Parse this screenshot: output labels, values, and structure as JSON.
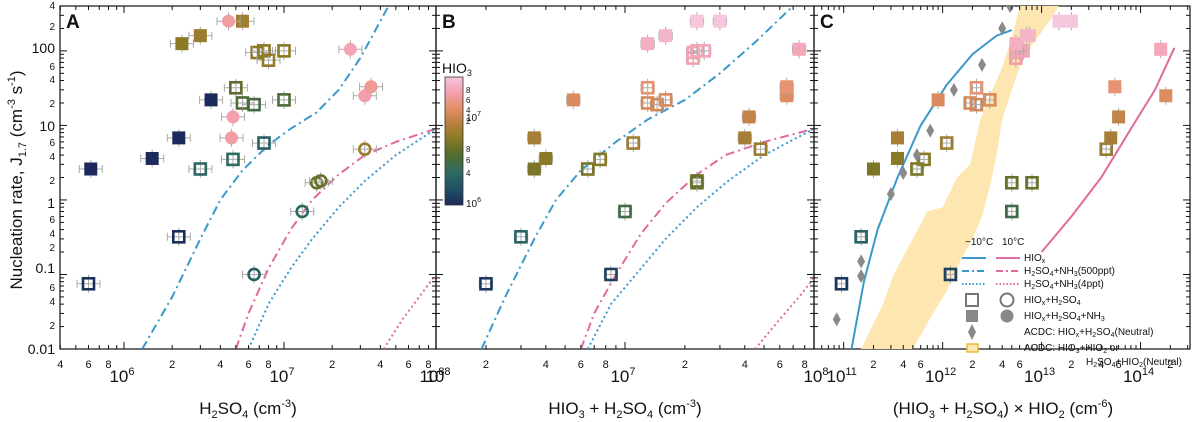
{
  "colors": {
    "blue_curve": "#3a99cc",
    "pink_curve": "#e06aa0",
    "band_fill": "#fde6b0",
    "diamond": "#8a8a8a",
    "errorbar": "#aaaaaa",
    "axis": "#111111"
  },
  "ylabel_main": "Nucleation rate, J",
  "ylabel_sub": "1.7",
  "ylabel_units": " (cm",
  "ylabel_exp1": "-3",
  "ylabel_mid": " s",
  "ylabel_exp2": "-1",
  "ylabel_close": ")",
  "colorbar": {
    "title": "HIO",
    "title_sub": "3",
    "label_top": "10",
    "label_top_exp": "7",
    "label_bottom": "10",
    "label_bottom_exp": "6",
    "minor_labels": [
      "8",
      "6",
      "4",
      "2",
      "8",
      "6",
      "4"
    ],
    "stops": [
      "#1b2a5a",
      "#1f4f63",
      "#2c6a63",
      "#556c2c",
      "#8a7a25",
      "#b88040",
      "#e6906a",
      "#f4a0b0",
      "#f6c6dc"
    ]
  },
  "y_ticks": {
    "major": [
      "100",
      "10",
      "1",
      "0.1",
      "0.01"
    ],
    "minor": [
      "4",
      "2",
      "6",
      "4",
      "2",
      "6",
      "4",
      "2",
      "6",
      "4",
      "2",
      "6",
      "4",
      "2"
    ]
  },
  "legend": {
    "header_cold": "−10°C",
    "header_warm": "10°C",
    "entries": [
      "HIO",
      "H",
      "H",
      "HIO",
      "HIO",
      "ACDC: HIO",
      "ACDC: HIO"
    ],
    "hiox": {
      "a": "HIO",
      "b": "x"
    },
    "nh3_500": {
      "a": "H",
      "b": "2",
      "c": "SO",
      "d": "4",
      "e": "+NH",
      "f": "3",
      "g": "(500ppt)"
    },
    "nh3_4": {
      "a": "H",
      "b": "2",
      "c": "SO",
      "d": "4",
      "e": "+NH",
      "f": "3",
      "g": "(4ppt)"
    },
    "hiox_h2so4": {
      "a": "HIO",
      "b": "x",
      "c": "+H",
      "d": "2",
      "e": "SO",
      "f": "4"
    },
    "hiox_h2so4_nh3": {
      "a": "HIO",
      "b": "x",
      "c": "+H",
      "d": "2",
      "e": "SO",
      "f": "4",
      "g": "+NH",
      "h": "3"
    },
    "acdc1": {
      "a": "ACDC: HIO",
      "b": "x",
      "c": "+H",
      "d": "2",
      "e": "SO",
      "f": "4",
      "g": "(Neutral)"
    },
    "acdc2": {
      "a": "ACDC: HIO",
      "b": "3",
      "c": "+HIO",
      "d": "2",
      "e": " or"
    },
    "acdc3": {
      "a": "H",
      "b": "2",
      "c": "SO",
      "d": "4",
      "e": "+HIO",
      "f": "2",
      "g": "(Neutral)"
    }
  },
  "panels": [
    {
      "letter": "A",
      "xlabel": {
        "a": "H",
        "b": "2",
        "c": "SO",
        "d": "4",
        "e": " (cm",
        "f": "-3",
        "g": ")"
      },
      "xmin_exp": 5.6,
      "xmax_exp": 7.95,
      "major_ticks": [
        {
          "exp": 6,
          "base": "10",
          "pow": "6"
        },
        {
          "exp": 7,
          "base": "10",
          "pow": "7"
        }
      ],
      "minor_labels": [
        {
          "v": 400000.0,
          "t": "4"
        },
        {
          "v": 600000.0,
          "t": "6"
        },
        {
          "v": 800000.0,
          "t": "8"
        },
        {
          "v": 2000000.0,
          "t": "2"
        },
        {
          "v": 4000000.0,
          "t": "4"
        },
        {
          "v": 6000000.0,
          "t": "6"
        },
        {
          "v": 8000000.0,
          "t": "8"
        },
        {
          "v": 20000000.0,
          "t": "2"
        },
        {
          "v": 40000000.0,
          "t": "4"
        },
        {
          "v": 60000000.0,
          "t": "6"
        },
        {
          "v": 80000000.0,
          "t": "8"
        }
      ]
    },
    {
      "letter": "B",
      "xlabel": {
        "a": "HIO",
        "b": "3",
        "c": " + H",
        "d": "2",
        "e": "SO",
        "f": "4",
        "g": " (cm",
        "h": "-3",
        "i": ")"
      },
      "xmin_exp": 6.05,
      "xmax_exp": 7.95,
      "major_ticks": [
        {
          "exp": 7,
          "base": "10",
          "pow": "7"
        }
      ],
      "minor_labels": [
        {
          "v": 2000000.0,
          "t": "2"
        },
        {
          "v": 4000000.0,
          "t": "4"
        },
        {
          "v": 6000000.0,
          "t": "6"
        },
        {
          "v": 8000000.0,
          "t": "8"
        },
        {
          "v": 20000000.0,
          "t": "2"
        },
        {
          "v": 40000000.0,
          "t": "4"
        },
        {
          "v": 60000000.0,
          "t": "6"
        },
        {
          "v": 80000000.0,
          "t": "8"
        }
      ],
      "edge_label": {
        "base": "10",
        "pow": "8"
      }
    },
    {
      "letter": "C",
      "xlabel": {
        "a": "(HIO",
        "b": "3",
        "c": " + H",
        "d": "2",
        "e": "SO",
        "f": "4",
        "g": ") × HIO",
        "h": "2",
        "i": " (cm",
        "j": "-6",
        "k": ")"
      },
      "xmin_exp": 10.7,
      "xmax_exp": 14.5,
      "major_ticks": [
        {
          "exp": 11,
          "base": "10",
          "pow": "11"
        },
        {
          "exp": 12,
          "base": "10",
          "pow": "12"
        },
        {
          "exp": 13,
          "base": "10",
          "pow": "13"
        },
        {
          "exp": 14,
          "base": "10",
          "pow": "14"
        }
      ],
      "minor_labels": [
        {
          "v": 200000000000.0,
          "t": "2"
        },
        {
          "v": 400000000000.0,
          "t": "4"
        },
        {
          "v": 600000000000.0,
          "t": "6"
        },
        {
          "v": 2000000000000.0,
          "t": "2"
        },
        {
          "v": 4000000000000.0,
          "t": "4"
        },
        {
          "v": 6000000000000.0,
          "t": "6"
        },
        {
          "v": 20000000000000.0,
          "t": "2"
        },
        {
          "v": 40000000000000.0,
          "t": "4"
        },
        {
          "v": 60000000000000.0,
          "t": "6"
        },
        {
          "v": 200000000000000.0,
          "t": "2"
        }
      ]
    }
  ],
  "chart_data": [
    {
      "type": "scatter",
      "panel": "A",
      "title": "A",
      "xlabel": "H2SO4 (cm-3)",
      "ylabel": "Nucleation rate, J1.7 (cm-3 s-1)",
      "xscale": "log",
      "yscale": "log",
      "xlim": [
        398107,
        89125094
      ],
      "ylim": [
        0.01,
        400
      ],
      "series": [
        {
          "name": "HIOx+H2SO4+NH3 (filled square)",
          "points": [
            [
              620000.0,
              2.6,
              1000000.0
            ],
            [
              1500000.0,
              3.6,
              1000000.0
            ],
            [
              2200000.0,
              6.8,
              1000000.0
            ],
            [
              3500000.0,
              22,
              1000000.0
            ],
            [
              2300000.0,
              125,
              10000000.0
            ],
            [
              3000000.0,
              160,
              12000000.0
            ],
            [
              5500000.0,
              250,
              13000000.0
            ]
          ]
        },
        {
          "name": "HIOx+H2SO4 (open square)",
          "points": [
            [
              600000.0,
              0.075,
              1100000.0
            ],
            [
              2200000.0,
              0.32,
              1050000.0
            ],
            [
              3000000.0,
              2.6,
              3000000.0
            ],
            [
              4800000.0,
              3.5,
              3200000.0
            ],
            [
              5000000.0,
              32,
              6000000.0
            ],
            [
              5500000.0,
              20,
              5000000.0
            ],
            [
              6500000.0,
              19,
              4500000.0
            ],
            [
              7500000.0,
              5.8,
              2500000.0
            ],
            [
              10000000.0,
              22,
              5000000.0
            ],
            [
              6800000.0,
              95,
              10000000.0
            ],
            [
              7500000.0,
              100,
              10000000.0
            ],
            [
              8000000.0,
              75,
              11000000.0
            ],
            [
              10000000.0,
              100,
              10000000.0
            ]
          ]
        },
        {
          "name": "HIOx+H2SO4 (open circle)",
          "points": [
            [
              6500000.0,
              0.1,
              2500000.0
            ],
            [
              13000000.0,
              0.7,
              3000000.0
            ],
            [
              16000000.0,
              1.7,
              7000000.0
            ],
            [
              17000000.0,
              1.8,
              7000000.0
            ],
            [
              32000000.0,
              4.8,
              12000000.0
            ]
          ]
        },
        {
          "name": "HIOx+H2SO4+NH3 (filled circle)",
          "points": [
            [
              4700000.0,
              6.8,
              50000000.0
            ],
            [
              4800000.0,
              13,
              55000000.0
            ],
            [
              4500000.0,
              250,
              50000000.0
            ],
            [
              26000000.0,
              105,
              60000000.0
            ],
            [
              32000000.0,
              25,
              55000000.0
            ],
            [
              35000000.0,
              33,
              45000000.0
            ]
          ]
        }
      ],
      "curves": [
        {
          "name": "H2SO4+NH3(500ppt), -10°C",
          "style": "dashdot",
          "color": "blue"
        },
        {
          "name": "H2SO4+NH3(500ppt), 10°C",
          "style": "dashdot",
          "color": "pink"
        },
        {
          "name": "H2SO4+NH3(4ppt), -10°C",
          "style": "dotted",
          "color": "blue"
        },
        {
          "name": "H2SO4+NH3(4ppt), 10°C",
          "style": "dotted",
          "color": "pink"
        }
      ],
      "colorbar": {
        "label": "HIO3",
        "range": [
          1000000.0,
          100000000.0
        ]
      }
    },
    {
      "type": "scatter",
      "panel": "B",
      "title": "B",
      "xlabel": "HIO3 + H2SO4 (cm-3)",
      "ylabel": "Nucleation rate, J1.7 (cm-3 s-1)",
      "xscale": "log",
      "yscale": "log",
      "xlim": [
        1122018,
        89125094
      ],
      "ylim": [
        0.01,
        400
      ],
      "series": [
        {
          "name": "HIOx+H2SO4 (open)",
          "points": [
            [
              2000000.0,
              0.075
            ],
            [
              3000000.0,
              0.32
            ],
            [
              6500000.0,
              2.6
            ],
            [
              7500000.0,
              3.5
            ],
            [
              11000000.0,
              5.8
            ],
            [
              13000000.0,
              20
            ],
            [
              13000000.0,
              32
            ],
            [
              14500000.0,
              19
            ],
            [
              16000000.0,
              22
            ],
            [
              22000000.0,
              80
            ],
            [
              22000000.0,
              95
            ],
            [
              23000000.0,
              100
            ],
            [
              25000000.0,
              100
            ],
            [
              8500000.0,
              0.1
            ],
            [
              10000000.0,
              0.7
            ],
            [
              23000000.0,
              1.7
            ],
            [
              23000000.0,
              1.8
            ],
            [
              48000000.0,
              4.8
            ]
          ]
        },
        {
          "name": "HIOx+H2SO4+NH3 (filled)",
          "points": [
            [
              3500000.0,
              2.6
            ],
            [
              4000000.0,
              3.6
            ],
            [
              3500000.0,
              6.8
            ],
            [
              5500000.0,
              22
            ],
            [
              13000000.0,
              125
            ],
            [
              16000000.0,
              160
            ],
            [
              23000000.0,
              250
            ],
            [
              30000000.0,
              250
            ],
            [
              40000000.0,
              6.8
            ],
            [
              42000000.0,
              13
            ],
            [
              65000000.0,
              25
            ],
            [
              65000000.0,
              33
            ],
            [
              75000000.0,
              105
            ]
          ]
        }
      ]
    },
    {
      "type": "scatter",
      "panel": "C",
      "title": "C",
      "xlabel": "(HIO3 + H2SO4) × HIO2 (cm-6)",
      "ylabel": "Nucleation rate, J1.7 (cm-3 s-1)",
      "xscale": "log",
      "yscale": "log",
      "xlim": [
        50000000000.0,
        320000000000000.0
      ],
      "ylim": [
        0.01,
        400
      ],
      "series": [
        {
          "name": "HIOx+H2SO4 (open)",
          "points": [
            [
              95000000000.0,
              0.075
            ],
            [
              150000000000.0,
              0.32
            ],
            [
              550000000000.0,
              2.6
            ],
            [
              650000000000.0,
              3.5
            ],
            [
              1100000000000.0,
              5.8
            ],
            [
              1900000000000.0,
              20
            ],
            [
              2200000000000.0,
              32
            ],
            [
              2200000000000.0,
              19
            ],
            [
              3000000000000.0,
              22
            ],
            [
              5500000000000.0,
              80
            ],
            [
              5500000000000.0,
              95
            ],
            [
              6000000000000.0,
              100
            ],
            [
              6500000000000.0,
              100
            ],
            [
              1200000000000.0,
              0.1
            ],
            [
              5000000000000.0,
              0.7
            ],
            [
              5000000000000.0,
              1.7
            ],
            [
              8000000000000.0,
              1.7
            ],
            [
              45000000000000.0,
              4.8
            ]
          ]
        },
        {
          "name": "HIOx+H2SO4+NH3 (filled)",
          "points": [
            [
              200000000000.0,
              2.6
            ],
            [
              350000000000.0,
              3.6
            ],
            [
              350000000000.0,
              6.8
            ],
            [
              900000000000.0,
              22
            ],
            [
              5500000000000.0,
              125
            ],
            [
              7000000000000.0,
              160
            ],
            [
              15000000000000.0,
              250
            ],
            [
              20000000000000.0,
              250
            ],
            [
              50000000000000.0,
              6.8
            ],
            [
              60000000000000.0,
              13
            ],
            [
              180000000000000.0,
              25
            ],
            [
              55000000000000.0,
              33
            ],
            [
              160000000000000.0,
              105
            ],
            [
              7500000000000.0,
              160
            ]
          ]
        },
        {
          "name": "ACDC: HIOx+H2SO4(Neutral)",
          "points": [
            [
              85000000000.0,
              0.025
            ],
            [
              150000000000.0,
              0.095
            ],
            [
              150000000000.0,
              0.15
            ],
            [
              300000000000.0,
              1.2
            ],
            [
              400000000000.0,
              2.3
            ],
            [
              550000000000.0,
              4.0
            ],
            [
              750000000000.0,
              8.5
            ],
            [
              1300000000000.0,
              30
            ],
            [
              2500000000000.0,
              65
            ],
            [
              4000000000000.0,
              200
            ],
            [
              4800000000000.0,
              400
            ]
          ]
        }
      ],
      "curves": [
        {
          "name": "HIOx, -10°C",
          "style": "solid",
          "color": "blue"
        },
        {
          "name": "HIOx, 10°C",
          "style": "solid",
          "color": "pink"
        }
      ],
      "band": {
        "name": "ACDC: HIO3+HIO2 or H2SO4+HIO2(Neutral)"
      }
    }
  ]
}
